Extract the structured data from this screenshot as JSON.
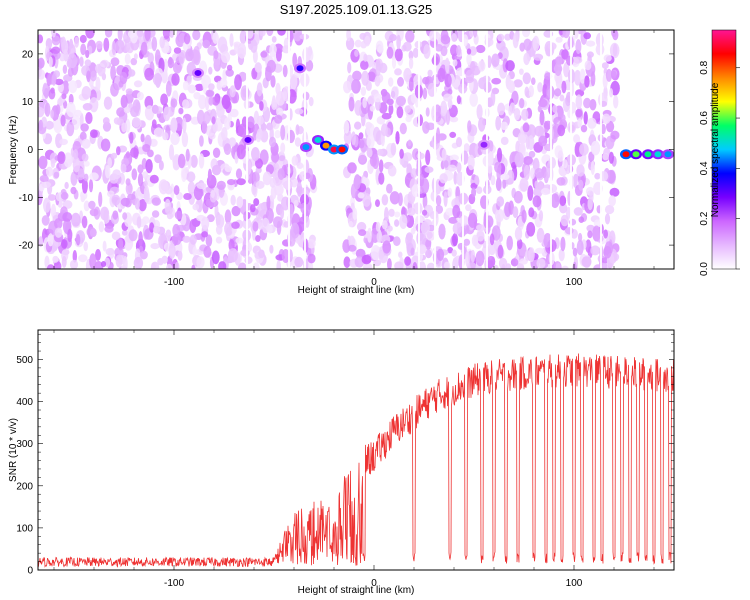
{
  "figure_title": "S197.2025.109.01.13.G25",
  "chart_data": [
    {
      "type": "heatmap",
      "title": "S197.2025.109.01.13.G25",
      "xlabel": "Height of straight line (km)",
      "ylabel": "Frequency (Hz)",
      "xlim": [
        -168,
        150
      ],
      "ylim": [
        -25,
        25
      ],
      "x_ticks": [
        -100,
        0,
        100
      ],
      "x_tick_labels": [
        "-100",
        "0",
        "100"
      ],
      "y_ticks": [
        -20,
        -10,
        0,
        10,
        20
      ],
      "y_tick_labels": [
        "-20",
        "-10",
        "0",
        "10",
        "20"
      ],
      "colorbar": {
        "label": "Normalized spectral amplitude",
        "range": [
          0,
          0.95
        ],
        "ticks": [
          0,
          0.2,
          0.4,
          0.6,
          0.8
        ],
        "tick_labels": [
          "0.0",
          "0.2",
          "0.4",
          "0.6",
          "0.8"
        ],
        "colors": [
          "#ffffff",
          "#e6b8ff",
          "#cc66ff",
          "#7700ff",
          "#0000ff",
          "#00ccff",
          "#00ff66",
          "#ffff00",
          "#ff8800",
          "#ff0000",
          "#ff1493"
        ]
      },
      "gaps_km": [
        [
          -30,
          -14
        ],
        [
          121,
          150
        ]
      ],
      "features": [
        {
          "x": -88,
          "y": 16,
          "value": 0.3
        },
        {
          "x": -63,
          "y": 2,
          "value": 0.3
        },
        {
          "x": -37,
          "y": 17,
          "value": 0.35
        },
        {
          "x": -34,
          "y": 0.5,
          "value": 0.45
        },
        {
          "x": -28,
          "y": 2,
          "value": 0.5
        },
        {
          "x": -24,
          "y": 0.8,
          "value": 0.75
        },
        {
          "x": -20,
          "y": 0,
          "value": 0.9
        },
        {
          "x": -16,
          "y": 0,
          "value": 0.85
        },
        {
          "x": 55,
          "y": 1,
          "value": 0.25
        },
        {
          "x": 126,
          "y": -1,
          "value": 0.85
        },
        {
          "x": 131,
          "y": -1,
          "value": 0.6
        },
        {
          "x": 137,
          "y": -1,
          "value": 0.55
        },
        {
          "x": 142,
          "y": -1,
          "value": 0.5
        },
        {
          "x": 147,
          "y": -1,
          "value": 0.45
        }
      ]
    },
    {
      "type": "line",
      "xlabel": "Height of straight line (km)",
      "ylabel": "SNR (10 * v/v)",
      "xlim": [
        -168,
        150
      ],
      "ylim": [
        0,
        570
      ],
      "x_ticks": [
        -100,
        0,
        100
      ],
      "x_tick_labels": [
        "-100",
        "0",
        "100"
      ],
      "y_ticks": [
        0,
        100,
        200,
        300,
        400,
        500
      ],
      "y_tick_labels": [
        "0",
        "100",
        "200",
        "300",
        "400",
        "500"
      ],
      "color": "#ee3333",
      "envelope": {
        "x": [
          -168,
          -60,
          -50,
          -40,
          -30,
          -20,
          -10,
          0,
          10,
          20,
          30,
          40,
          50,
          60,
          80,
          100,
          120,
          150
        ],
        "y": [
          20,
          22,
          30,
          150,
          170,
          185,
          260,
          290,
          350,
          390,
          430,
          450,
          470,
          480,
          490,
          495,
          490,
          480
        ]
      },
      "dropouts_km": [
        -5,
        20,
        38,
        46,
        54,
        60,
        66,
        72,
        80,
        86,
        90,
        94,
        100,
        104,
        110,
        114,
        120,
        124,
        128,
        132,
        136,
        140,
        144,
        148
      ]
    }
  ]
}
